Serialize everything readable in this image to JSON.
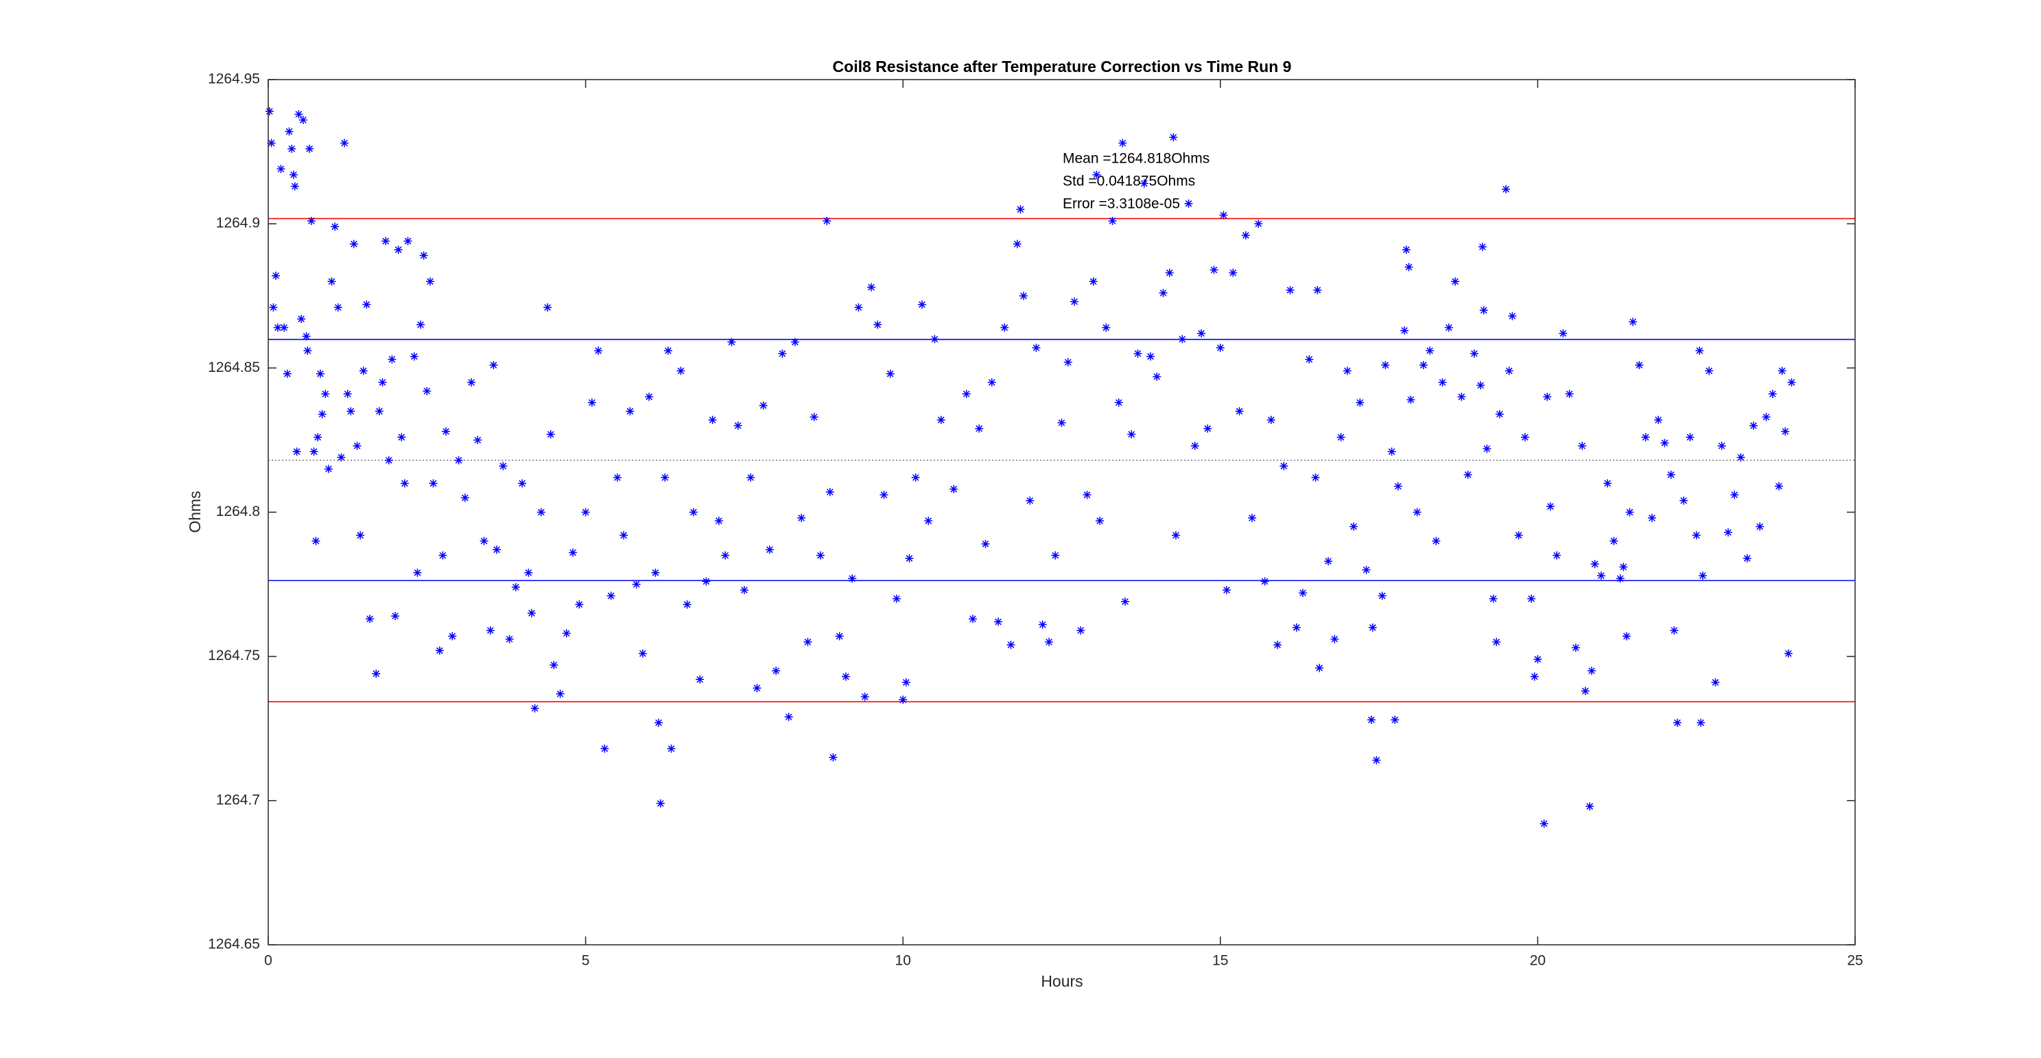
{
  "chart_data": {
    "type": "scatter",
    "title": "Coil8 Resistance after Temperature Correction vs Time Run 9",
    "x_label": "Hours",
    "y_label": "Ohms",
    "annotations": [
      "Mean =1264.818Ohms",
      "Std =0.041875Ohms",
      "Error =3.3108e-05"
    ],
    "xlim": [
      0,
      25
    ],
    "xticks": [
      0,
      5,
      10,
      15,
      20,
      25
    ],
    "ylim": [
      1264.65,
      1264.95
    ],
    "yticks": [
      1264.65,
      1264.7,
      1264.75,
      1264.8,
      1264.85,
      1264.9,
      1264.95
    ],
    "hlines": [
      {
        "value": 1264.9018,
        "color": "#ff0000",
        "style": "solid"
      },
      {
        "value": 1264.8599,
        "color": "#0000ff",
        "style": "solid"
      },
      {
        "value": 1264.818,
        "color": "#808080",
        "style": "dotted"
      },
      {
        "value": 1264.7763,
        "color": "#0000ff",
        "style": "solid"
      },
      {
        "value": 1264.7343,
        "color": "#ff0000",
        "style": "solid"
      }
    ],
    "x": [
      0.02,
      0.05,
      0.08,
      0.12,
      0.15,
      0.2,
      0.25,
      0.3,
      0.33,
      0.37,
      0.4,
      0.42,
      0.45,
      0.48,
      0.52,
      0.55,
      0.6,
      0.62,
      0.65,
      0.68,
      0.72,
      0.75,
      0.78,
      0.82,
      0.85,
      0.9,
      0.95,
      1.0,
      1.05,
      1.1,
      1.15,
      1.2,
      1.25,
      1.3,
      1.35,
      1.4,
      1.45,
      1.5,
      1.55,
      1.6,
      1.7,
      1.75,
      1.8,
      1.85,
      1.9,
      1.95,
      2.0,
      2.05,
      2.1,
      2.15,
      2.2,
      2.3,
      2.35,
      2.4,
      2.45,
      2.5,
      2.55,
      2.6,
      2.7,
      2.75,
      2.8,
      2.9,
      3.0,
      3.1,
      3.2,
      3.3,
      3.4,
      3.5,
      3.55,
      3.6,
      3.7,
      3.8,
      3.9,
      4.0,
      4.1,
      4.15,
      4.2,
      4.3,
      4.4,
      4.45,
      4.5,
      4.6,
      4.7,
      4.8,
      4.9,
      5.0,
      5.1,
      5.2,
      5.3,
      5.4,
      5.5,
      5.6,
      5.7,
      5.8,
      5.9,
      6.0,
      6.1,
      6.15,
      6.18,
      6.25,
      6.3,
      6.35,
      6.5,
      6.6,
      6.7,
      6.8,
      6.9,
      7.0,
      7.1,
      7.2,
      7.3,
      7.4,
      7.5,
      7.6,
      7.7,
      7.8,
      7.9,
      8.0,
      8.1,
      8.2,
      8.3,
      8.4,
      8.5,
      8.6,
      8.7,
      8.8,
      8.85,
      8.9,
      9.0,
      9.1,
      9.2,
      9.3,
      9.4,
      9.5,
      9.6,
      9.7,
      9.8,
      9.9,
      10.0,
      10.05,
      10.1,
      10.2,
      10.3,
      10.4,
      10.5,
      10.6,
      10.8,
      11.0,
      11.1,
      11.2,
      11.3,
      11.4,
      11.5,
      11.6,
      11.7,
      11.8,
      11.85,
      11.9,
      12.0,
      12.1,
      12.2,
      12.3,
      12.4,
      12.5,
      12.6,
      12.7,
      12.8,
      12.9,
      13.0,
      13.05,
      13.1,
      13.2,
      13.3,
      13.4,
      13.46,
      13.5,
      13.6,
      13.7,
      13.8,
      13.9,
      14.0,
      14.1,
      14.2,
      14.26,
      14.3,
      14.4,
      14.5,
      14.6,
      14.7,
      14.8,
      14.9,
      15.0,
      15.05,
      15.1,
      15.2,
      15.3,
      15.4,
      15.5,
      15.6,
      15.7,
      15.8,
      15.9,
      16.0,
      16.1,
      16.2,
      16.3,
      16.4,
      16.5,
      16.53,
      16.56,
      16.7,
      16.8,
      16.9,
      17.0,
      17.1,
      17.2,
      17.3,
      17.38,
      17.4,
      17.46,
      17.55,
      17.6,
      17.7,
      17.75,
      17.8,
      17.9,
      17.93,
      17.97,
      18.0,
      18.1,
      18.2,
      18.3,
      18.4,
      18.5,
      18.6,
      18.7,
      18.8,
      18.9,
      19.0,
      19.1,
      19.13,
      19.15,
      19.2,
      19.3,
      19.35,
      19.4,
      19.5,
      19.55,
      19.6,
      19.7,
      19.8,
      19.9,
      19.95,
      20.0,
      20.1,
      20.15,
      20.2,
      20.3,
      20.4,
      20.5,
      20.6,
      20.7,
      20.75,
      20.82,
      20.85,
      20.9,
      21.0,
      21.1,
      21.2,
      21.3,
      21.35,
      21.4,
      21.45,
      21.5,
      21.6,
      21.7,
      21.8,
      21.9,
      22.0,
      22.1,
      22.15,
      22.2,
      22.3,
      22.4,
      22.5,
      22.55,
      22.57,
      22.6,
      22.7,
      22.8,
      22.9,
      23.0,
      23.1,
      23.2,
      23.3,
      23.4,
      23.5,
      23.6,
      23.7,
      23.8,
      23.85,
      23.9,
      23.95,
      24.0
    ],
    "series": [
      {
        "color": "#0000ff",
        "marker": "*",
        "values": [
          1264.939,
          1264.928,
          1264.871,
          1264.882,
          1264.864,
          1264.919,
          1264.864,
          1264.848,
          1264.932,
          1264.926,
          1264.917,
          1264.913,
          1264.821,
          1264.938,
          1264.867,
          1264.936,
          1264.861,
          1264.856,
          1264.926,
          1264.901,
          1264.821,
          1264.79,
          1264.826,
          1264.848,
          1264.834,
          1264.841,
          1264.815,
          1264.88,
          1264.899,
          1264.871,
          1264.819,
          1264.928,
          1264.841,
          1264.835,
          1264.893,
          1264.823,
          1264.792,
          1264.849,
          1264.872,
          1264.763,
          1264.744,
          1264.835,
          1264.845,
          1264.894,
          1264.818,
          1264.853,
          1264.764,
          1264.891,
          1264.826,
          1264.81,
          1264.894,
          1264.854,
          1264.779,
          1264.865,
          1264.889,
          1264.842,
          1264.88,
          1264.81,
          1264.752,
          1264.785,
          1264.828,
          1264.757,
          1264.818,
          1264.805,
          1264.845,
          1264.825,
          1264.79,
          1264.759,
          1264.851,
          1264.787,
          1264.816,
          1264.756,
          1264.774,
          1264.81,
          1264.779,
          1264.765,
          1264.732,
          1264.8,
          1264.871,
          1264.827,
          1264.747,
          1264.737,
          1264.758,
          1264.786,
          1264.768,
          1264.8,
          1264.838,
          1264.856,
          1264.718,
          1264.771,
          1264.812,
          1264.792,
          1264.835,
          1264.775,
          1264.751,
          1264.84,
          1264.779,
          1264.727,
          1264.699,
          1264.812,
          1264.856,
          1264.718,
          1264.849,
          1264.768,
          1264.8,
          1264.742,
          1264.776,
          1264.832,
          1264.797,
          1264.785,
          1264.859,
          1264.83,
          1264.773,
          1264.812,
          1264.739,
          1264.837,
          1264.787,
          1264.745,
          1264.855,
          1264.729,
          1264.859,
          1264.798,
          1264.755,
          1264.833,
          1264.785,
          1264.901,
          1264.807,
          1264.715,
          1264.757,
          1264.743,
          1264.777,
          1264.871,
          1264.736,
          1264.878,
          1264.865,
          1264.806,
          1264.848,
          1264.77,
          1264.735,
          1264.741,
          1264.784,
          1264.812,
          1264.872,
          1264.797,
          1264.86,
          1264.832,
          1264.808,
          1264.841,
          1264.763,
          1264.829,
          1264.789,
          1264.845,
          1264.762,
          1264.864,
          1264.754,
          1264.893,
          1264.905,
          1264.875,
          1264.804,
          1264.857,
          1264.761,
          1264.755,
          1264.785,
          1264.831,
          1264.852,
          1264.873,
          1264.759,
          1264.806,
          1264.88,
          1264.917,
          1264.797,
          1264.864,
          1264.901,
          1264.838,
          1264.928,
          1264.769,
          1264.827,
          1264.855,
          1264.914,
          1264.854,
          1264.847,
          1264.876,
          1264.883,
          1264.93,
          1264.792,
          1264.86,
          1264.907,
          1264.823,
          1264.862,
          1264.829,
          1264.884,
          1264.857,
          1264.903,
          1264.773,
          1264.883,
          1264.835,
          1264.896,
          1264.798,
          1264.9,
          1264.776,
          1264.832,
          1264.754,
          1264.816,
          1264.877,
          1264.76,
          1264.772,
          1264.853,
          1264.812,
          1264.877,
          1264.746,
          1264.783,
          1264.756,
          1264.826,
          1264.849,
          1264.795,
          1264.838,
          1264.78,
          1264.728,
          1264.76,
          1264.714,
          1264.771,
          1264.851,
          1264.821,
          1264.728,
          1264.809,
          1264.863,
          1264.891,
          1264.885,
          1264.839,
          1264.8,
          1264.851,
          1264.856,
          1264.79,
          1264.845,
          1264.864,
          1264.88,
          1264.84,
          1264.813,
          1264.855,
          1264.844,
          1264.892,
          1264.87,
          1264.822,
          1264.77,
          1264.755,
          1264.834,
          1264.912,
          1264.849,
          1264.868,
          1264.792,
          1264.826,
          1264.77,
          1264.743,
          1264.749,
          1264.692,
          1264.84,
          1264.802,
          1264.785,
          1264.862,
          1264.841,
          1264.753,
          1264.823,
          1264.738,
          1264.698,
          1264.745,
          1264.782,
          1264.778,
          1264.81,
          1264.79,
          1264.777,
          1264.781,
          1264.757,
          1264.8,
          1264.866,
          1264.851,
          1264.826,
          1264.798,
          1264.832,
          1264.824,
          1264.813,
          1264.759,
          1264.727,
          1264.804,
          1264.826,
          1264.792,
          1264.856,
          1264.727,
          1264.778,
          1264.849,
          1264.741,
          1264.823,
          1264.793,
          1264.806,
          1264.819,
          1264.784,
          1264.83,
          1264.795,
          1264.833,
          1264.841,
          1264.809,
          1264.849,
          1264.828,
          1264.751,
          1264.845
        ]
      }
    ]
  }
}
